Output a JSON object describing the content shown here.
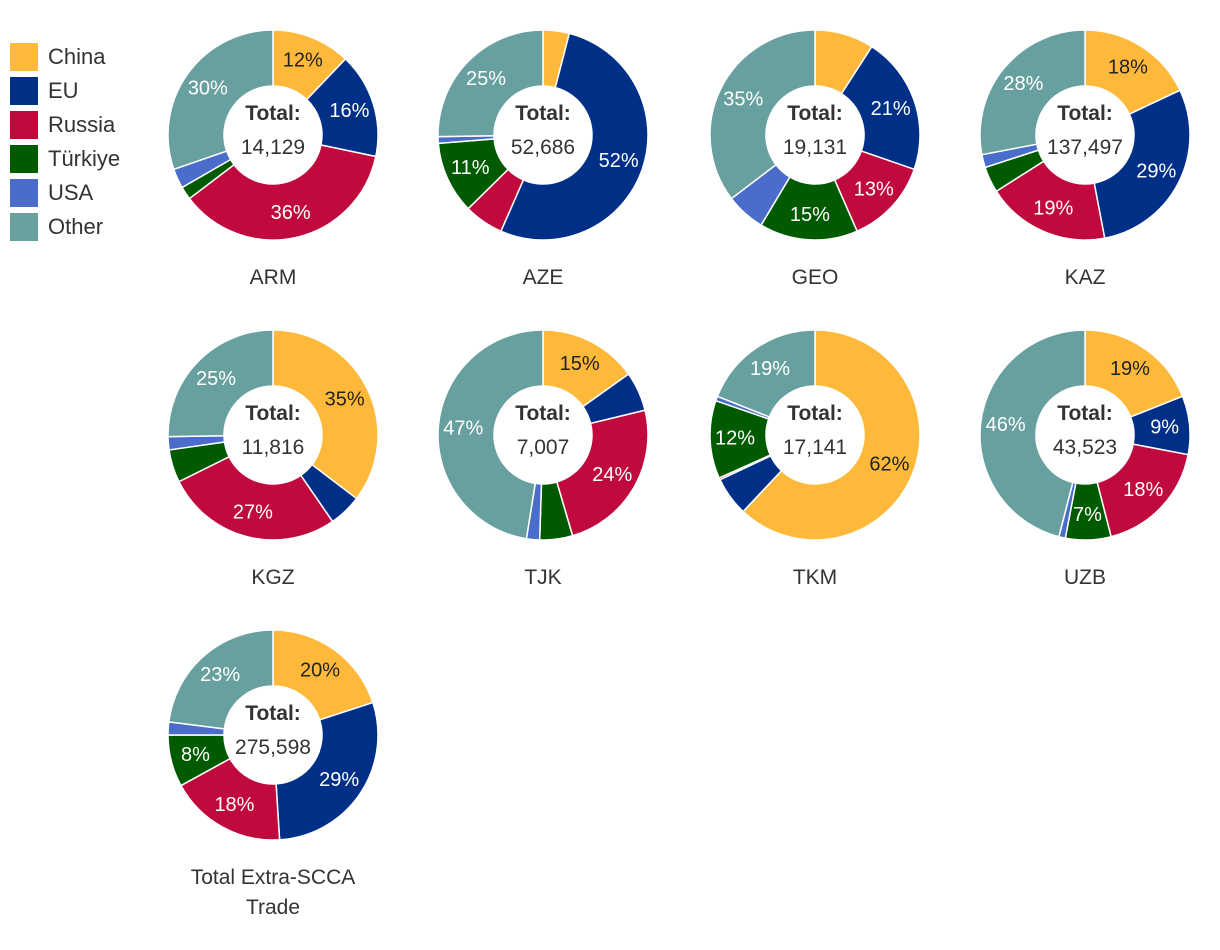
{
  "legend": {
    "items": [
      {
        "label": "China",
        "color": "#FFB93A"
      },
      {
        "label": "EU",
        "color": "#002F87"
      },
      {
        "label": "Russia",
        "color": "#C0093C"
      },
      {
        "label": "Türkiye",
        "color": "#005A00"
      },
      {
        "label": "USA",
        "color": "#4A6CCB"
      },
      {
        "label": "Other",
        "color": "#67A09E"
      }
    ]
  },
  "total_label": "Total:",
  "chart_data": [
    {
      "type": "pie",
      "title": "ARM",
      "total": "14,129",
      "categories": [
        "China",
        "EU",
        "Russia",
        "Türkiye",
        "USA",
        "Other"
      ],
      "values": [
        12,
        16,
        36,
        2,
        3,
        30
      ],
      "labels": [
        "12%",
        "16%",
        "36%",
        "",
        "",
        "30%"
      ]
    },
    {
      "type": "pie",
      "title": "AZE",
      "total": "52,686",
      "categories": [
        "China",
        "EU",
        "Russia",
        "Türkiye",
        "USA",
        "Other"
      ],
      "values": [
        4,
        52,
        6,
        11,
        1,
        25
      ],
      "labels": [
        "",
        "52%",
        "",
        "11%",
        "",
        "25%"
      ]
    },
    {
      "type": "pie",
      "title": "GEO",
      "total": "19,131",
      "categories": [
        "China",
        "EU",
        "Russia",
        "Türkiye",
        "USA",
        "Other"
      ],
      "values": [
        9,
        21,
        13,
        15,
        6,
        35
      ],
      "labels": [
        "",
        "21%",
        "13%",
        "15%",
        "",
        "35%"
      ]
    },
    {
      "type": "pie",
      "title": "KAZ",
      "total": "137,497",
      "categories": [
        "China",
        "EU",
        "Russia",
        "Türkiye",
        "USA",
        "Other"
      ],
      "values": [
        18,
        29,
        19,
        4,
        2,
        28
      ],
      "labels": [
        "18%",
        "29%",
        "19%",
        "",
        "",
        "28%"
      ]
    },
    {
      "type": "pie",
      "title": "KGZ",
      "total": "11,816",
      "categories": [
        "China",
        "EU",
        "Russia",
        "Türkiye",
        "USA",
        "Other"
      ],
      "values": [
        35,
        5,
        27,
        5,
        2,
        25
      ],
      "labels": [
        "35%",
        "",
        "27%",
        "",
        "",
        "25%"
      ]
    },
    {
      "type": "pie",
      "title": "TJK",
      "total": "7,007",
      "categories": [
        "China",
        "EU",
        "Russia",
        "Türkiye",
        "USA",
        "Other"
      ],
      "values": [
        15,
        6,
        24,
        5,
        2,
        47
      ],
      "labels": [
        "15%",
        "",
        "24%",
        "",
        "",
        "47%"
      ]
    },
    {
      "type": "pie",
      "title": "TKM",
      "total": "17,141",
      "categories": [
        "China",
        "EU",
        "Russia",
        "Türkiye",
        "USA",
        "Other"
      ],
      "values": [
        62,
        6,
        0.3,
        12,
        0.7,
        19
      ],
      "labels": [
        "62%",
        "",
        "",
        "12%",
        "",
        "19%"
      ]
    },
    {
      "type": "pie",
      "title": "UZB",
      "total": "43,523",
      "categories": [
        "China",
        "EU",
        "Russia",
        "Türkiye",
        "USA",
        "Other"
      ],
      "values": [
        19,
        9,
        18,
        7,
        1,
        46
      ],
      "labels": [
        "19%",
        "9%",
        "18%",
        "7%",
        "",
        "46%"
      ]
    },
    {
      "type": "pie",
      "title": "Total Extra-SCCA Trade",
      "total": "275,598",
      "categories": [
        "China",
        "EU",
        "Russia",
        "Türkiye",
        "USA",
        "Other"
      ],
      "values": [
        20,
        29,
        18,
        8,
        2,
        23
      ],
      "labels": [
        "20%",
        "29%",
        "18%",
        "8%",
        "",
        "23%"
      ]
    }
  ]
}
